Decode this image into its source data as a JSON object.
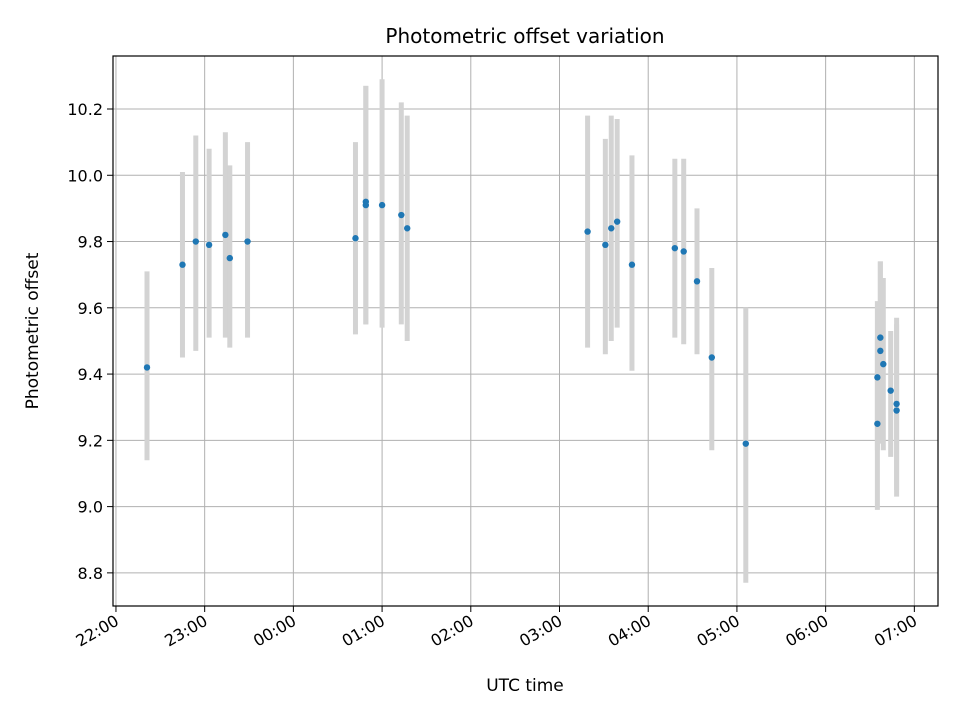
{
  "chart_data": {
    "type": "scatter",
    "title": "Photometric offset variation",
    "xlabel": "UTC time",
    "ylabel": "Photometric offset",
    "x_axis": "time",
    "xlim": [
      "21:58",
      "07:16"
    ],
    "ylim": [
      8.7,
      10.36
    ],
    "xtick_labels": [
      "22:00",
      "23:00",
      "00:00",
      "01:00",
      "02:00",
      "03:00",
      "04:00",
      "05:00",
      "06:00",
      "07:00"
    ],
    "yticks": [
      8.8,
      9.0,
      9.2,
      9.4,
      9.6,
      9.8,
      10.0,
      10.2
    ],
    "ytick_labels": [
      "8.8",
      "9.0",
      "9.2",
      "9.4",
      "9.6",
      "9.8",
      "10.0",
      "10.2"
    ],
    "grid": true,
    "point_color": "#1f77b4",
    "errorbar_color": "#d3d3d3",
    "points": [
      {
        "t": "22:21",
        "y": 9.42,
        "lo": 9.14,
        "hi": 9.71
      },
      {
        "t": "22:45",
        "y": 9.73,
        "lo": 9.45,
        "hi": 10.01
      },
      {
        "t": "22:54",
        "y": 9.8,
        "lo": 9.47,
        "hi": 10.12
      },
      {
        "t": "23:03",
        "y": 9.79,
        "lo": 9.51,
        "hi": 10.08
      },
      {
        "t": "23:14",
        "y": 9.82,
        "lo": 9.51,
        "hi": 10.13
      },
      {
        "t": "23:17",
        "y": 9.75,
        "lo": 9.48,
        "hi": 10.03
      },
      {
        "t": "23:29",
        "y": 9.8,
        "lo": 9.51,
        "hi": 10.1
      },
      {
        "t": "00:42",
        "y": 9.81,
        "lo": 9.52,
        "hi": 10.1
      },
      {
        "t": "00:49",
        "y": 9.92,
        "lo": 9.55,
        "hi": 10.27
      },
      {
        "t": "00:49",
        "y": 9.91,
        "lo": 9.55,
        "hi": 10.27
      },
      {
        "t": "01:00",
        "y": 9.91,
        "lo": 9.54,
        "hi": 10.29
      },
      {
        "t": "01:13",
        "y": 9.88,
        "lo": 9.55,
        "hi": 10.22
      },
      {
        "t": "01:17",
        "y": 9.84,
        "lo": 9.5,
        "hi": 10.18
      },
      {
        "t": "03:19",
        "y": 9.83,
        "lo": 9.48,
        "hi": 10.18
      },
      {
        "t": "03:31",
        "y": 9.79,
        "lo": 9.46,
        "hi": 10.11
      },
      {
        "t": "03:35",
        "y": 9.84,
        "lo": 9.5,
        "hi": 10.18
      },
      {
        "t": "03:39",
        "y": 9.86,
        "lo": 9.54,
        "hi": 10.17
      },
      {
        "t": "03:49",
        "y": 9.73,
        "lo": 9.41,
        "hi": 10.06
      },
      {
        "t": "04:18",
        "y": 9.78,
        "lo": 9.51,
        "hi": 10.05
      },
      {
        "t": "04:24",
        "y": 9.77,
        "lo": 9.49,
        "hi": 10.05
      },
      {
        "t": "04:33",
        "y": 9.68,
        "lo": 9.46,
        "hi": 9.9
      },
      {
        "t": "04:43",
        "y": 9.45,
        "lo": 9.17,
        "hi": 9.72
      },
      {
        "t": "05:06",
        "y": 9.19,
        "lo": 8.77,
        "hi": 9.6
      },
      {
        "t": "06:35",
        "y": 9.39,
        "lo": 9.17,
        "hi": 9.62
      },
      {
        "t": "06:35",
        "y": 9.25,
        "lo": 8.99,
        "hi": 9.51
      },
      {
        "t": "06:37",
        "y": 9.47,
        "lo": 9.19,
        "hi": 9.74
      },
      {
        "t": "06:37",
        "y": 9.51,
        "lo": 9.23,
        "hi": 9.74
      },
      {
        "t": "06:39",
        "y": 9.43,
        "lo": 9.17,
        "hi": 9.69
      },
      {
        "t": "06:44",
        "y": 9.35,
        "lo": 9.15,
        "hi": 9.53
      },
      {
        "t": "06:48",
        "y": 9.31,
        "lo": 9.05,
        "hi": 9.57
      },
      {
        "t": "06:48",
        "y": 9.29,
        "lo": 9.03,
        "hi": 9.55
      }
    ]
  }
}
